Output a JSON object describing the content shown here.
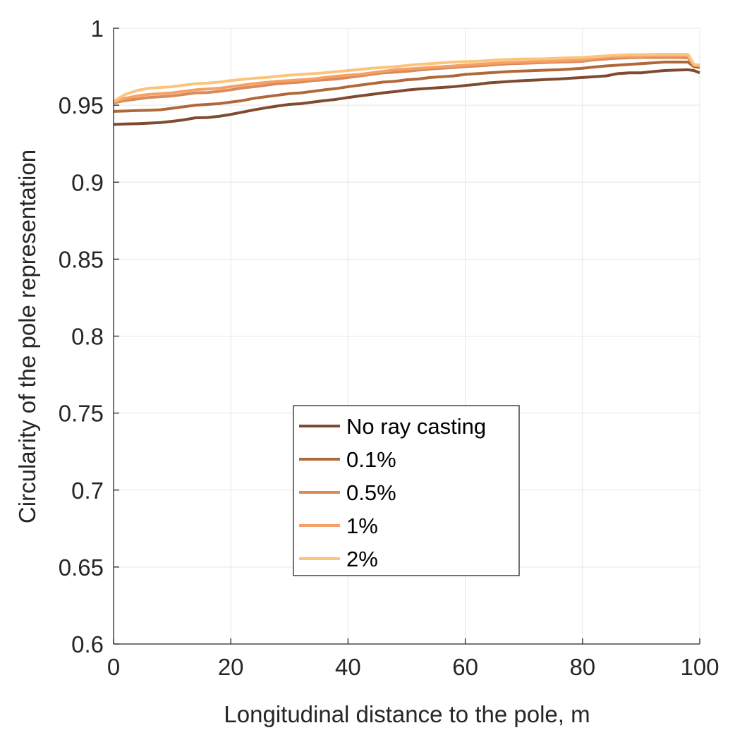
{
  "chart_data": {
    "type": "line",
    "title": "",
    "xlabel": "Longitudinal distance to the pole, m",
    "ylabel": "Circularity of the pole representation",
    "xlim": [
      0,
      100
    ],
    "ylim": [
      0.6,
      1.0
    ],
    "x_ticks": [
      0,
      20,
      40,
      60,
      80,
      100
    ],
    "x_tick_labels": [
      "0",
      "20",
      "40",
      "60",
      "80",
      "100"
    ],
    "y_ticks": [
      0.6,
      0.65,
      0.7,
      0.75,
      0.8,
      0.85,
      0.9,
      0.95,
      1.0
    ],
    "y_tick_labels": [
      "0.6",
      "0.65",
      "0.7",
      "0.75",
      "0.8",
      "0.85",
      "0.9",
      "0.95",
      "1"
    ],
    "grid": true,
    "legend_position": "center",
    "x": [
      0,
      2,
      4,
      6,
      8,
      10,
      12,
      14,
      16,
      18,
      20,
      22,
      24,
      26,
      28,
      30,
      32,
      34,
      36,
      38,
      40,
      42,
      44,
      46,
      48,
      50,
      52,
      54,
      56,
      58,
      60,
      62,
      64,
      66,
      68,
      70,
      72,
      74,
      76,
      78,
      80,
      82,
      84,
      86,
      88,
      90,
      92,
      94,
      96,
      98,
      99,
      100
    ],
    "series": [
      {
        "name": "No ray casting",
        "color": "#7f4a30",
        "values": [
          0.9375,
          0.9378,
          0.938,
          0.9383,
          0.9387,
          0.9395,
          0.9405,
          0.9418,
          0.942,
          0.9428,
          0.944,
          0.9455,
          0.947,
          0.9483,
          0.9495,
          0.9505,
          0.951,
          0.952,
          0.953,
          0.9538,
          0.955,
          0.956,
          0.957,
          0.958,
          0.9588,
          0.9598,
          0.9605,
          0.961,
          0.9615,
          0.962,
          0.9628,
          0.9635,
          0.9645,
          0.965,
          0.9655,
          0.966,
          0.9663,
          0.9667,
          0.967,
          0.9675,
          0.968,
          0.9685,
          0.969,
          0.9705,
          0.971,
          0.971,
          0.9718,
          0.9725,
          0.9728,
          0.973,
          0.9725,
          0.971
        ]
      },
      {
        "name": "0.1%",
        "color": "#b06838",
        "values": [
          0.946,
          0.9462,
          0.9465,
          0.9467,
          0.947,
          0.948,
          0.949,
          0.95,
          0.9505,
          0.951,
          0.952,
          0.953,
          0.9545,
          0.9555,
          0.9565,
          0.9575,
          0.958,
          0.959,
          0.96,
          0.9608,
          0.962,
          0.963,
          0.964,
          0.965,
          0.9655,
          0.9665,
          0.967,
          0.968,
          0.9685,
          0.969,
          0.97,
          0.9705,
          0.971,
          0.9715,
          0.972,
          0.9722,
          0.9725,
          0.9728,
          0.973,
          0.9735,
          0.974,
          0.9748,
          0.9755,
          0.976,
          0.9765,
          0.977,
          0.9775,
          0.978,
          0.978,
          0.978,
          0.975,
          0.9745
        ]
      },
      {
        "name": "0.5%",
        "color": "#d98a5b",
        "values": [
          0.9515,
          0.953,
          0.954,
          0.955,
          0.9555,
          0.956,
          0.957,
          0.958,
          0.9582,
          0.959,
          0.96,
          0.9612,
          0.962,
          0.963,
          0.964,
          0.9645,
          0.965,
          0.966,
          0.9665,
          0.967,
          0.968,
          0.969,
          0.97,
          0.971,
          0.9715,
          0.972,
          0.9728,
          0.9735,
          0.974,
          0.9745,
          0.975,
          0.9755,
          0.976,
          0.9765,
          0.977,
          0.9772,
          0.9775,
          0.9778,
          0.978,
          0.9782,
          0.9785,
          0.9795,
          0.98,
          0.9805,
          0.9808,
          0.981,
          0.981,
          0.981,
          0.981,
          0.9808,
          0.976,
          0.9755
        ]
      },
      {
        "name": "1%",
        "color": "#f5a064",
        "values": [
          0.952,
          0.9545,
          0.956,
          0.957,
          0.9575,
          0.958,
          0.959,
          0.96,
          0.9605,
          0.961,
          0.962,
          0.963,
          0.964,
          0.9648,
          0.9655,
          0.966,
          0.9665,
          0.967,
          0.968,
          0.9688,
          0.9695,
          0.97,
          0.971,
          0.972,
          0.973,
          0.9735,
          0.974,
          0.9745,
          0.975,
          0.9755,
          0.976,
          0.9765,
          0.977,
          0.9775,
          0.9778,
          0.978,
          0.9783,
          0.9786,
          0.9788,
          0.979,
          0.9795,
          0.9805,
          0.981,
          0.9815,
          0.9818,
          0.9818,
          0.982,
          0.982,
          0.982,
          0.982,
          0.976,
          0.9758
        ]
      },
      {
        "name": "2%",
        "color": "#fbc47d",
        "values": [
          0.9525,
          0.957,
          0.9595,
          0.961,
          0.9615,
          0.962,
          0.963,
          0.964,
          0.9643,
          0.965,
          0.966,
          0.9668,
          0.9675,
          0.968,
          0.9688,
          0.9695,
          0.97,
          0.9705,
          0.971,
          0.9718,
          0.9725,
          0.9732,
          0.974,
          0.9745,
          0.975,
          0.9758,
          0.9765,
          0.977,
          0.9775,
          0.978,
          0.9783,
          0.9785,
          0.979,
          0.9795,
          0.9798,
          0.98,
          0.98,
          0.9802,
          0.9805,
          0.9808,
          0.981,
          0.9815,
          0.982,
          0.9825,
          0.9828,
          0.9828,
          0.983,
          0.983,
          0.983,
          0.983,
          0.9765,
          0.976
        ]
      }
    ]
  }
}
